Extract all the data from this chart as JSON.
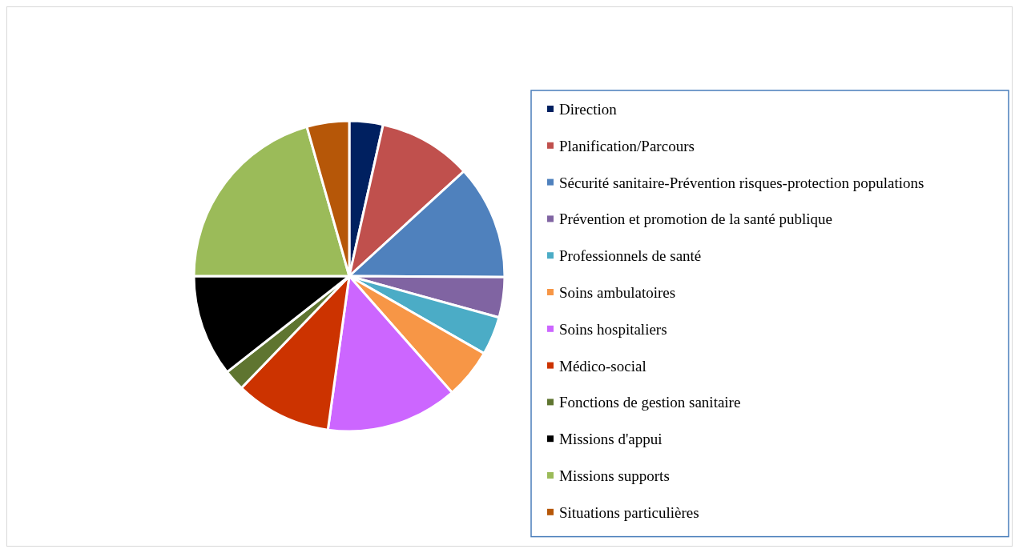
{
  "chart_data": {
    "type": "pie",
    "categories": [
      "Direction",
      "Planification/Parcours",
      "Sécurité sanitaire-Prévention risques-protection populations",
      "Prévention et promotion de la santé publique",
      "Professionnels de santé",
      "Soins ambulatoires",
      "Soins hospitaliers",
      "Médico-social",
      "Fonctions de gestion sanitaire",
      "Missions d'appui",
      "Missions supports",
      "Situations particulières"
    ],
    "values": [
      3.5,
      9.7,
      11.9,
      4.2,
      4.0,
      5.2,
      13.7,
      10.0,
      2.2,
      10.6,
      20.6,
      4.4
    ],
    "colors": [
      "#002060",
      "#c0504d",
      "#4f81bd",
      "#8064a2",
      "#4bacc6",
      "#f79646",
      "#cc66ff",
      "#cc3300",
      "#5f7530",
      "#000000",
      "#9bbb59",
      "#b65708"
    ],
    "legend": "right"
  }
}
